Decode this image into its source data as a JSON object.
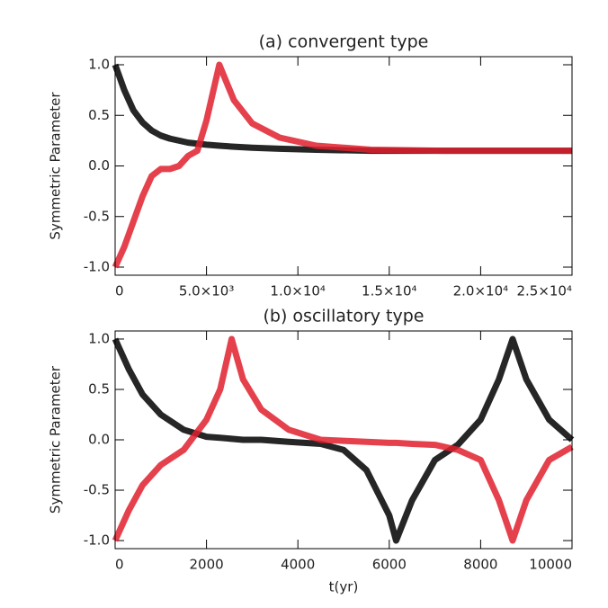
{
  "chart_data": [
    {
      "type": "line",
      "title": "(a) convergent type",
      "y_label": "Symmetric Parameter",
      "x": [
        0,
        500,
        1000,
        1500,
        2000,
        2500,
        3000,
        3500,
        4000,
        4500,
        5000,
        5700,
        6500,
        7500,
        9000,
        11000,
        14000,
        18000,
        25000
      ],
      "series": [
        {
          "color": "#000000",
          "values": [
            1.0,
            0.75,
            0.55,
            0.43,
            0.35,
            0.3,
            0.27,
            0.25,
            0.23,
            0.22,
            0.21,
            0.2,
            0.19,
            0.18,
            0.17,
            0.16,
            0.15,
            0.15,
            0.15
          ]
        },
        {
          "color": "#e0202e",
          "values": [
            -1.0,
            -0.8,
            -0.55,
            -0.3,
            -0.1,
            -0.03,
            -0.03,
            0.0,
            0.1,
            0.15,
            0.45,
            1.0,
            0.65,
            0.42,
            0.28,
            0.2,
            0.16,
            0.15,
            0.15
          ]
        }
      ],
      "xlim": [
        0,
        25000
      ],
      "ylim": [
        -1.08,
        1.08
      ],
      "xticks": [
        0,
        {
          "value": 5000,
          "label": "5.0×10³"
        },
        {
          "value": 10000,
          "label": "1.0×10⁴"
        },
        {
          "value": 15000,
          "label": "1.5×10⁴"
        },
        {
          "value": 20000,
          "label": "2.0×10⁴"
        },
        {
          "value": 25000,
          "label": "2.5×10⁴"
        }
      ],
      "yticks": [
        {
          "value": -1,
          "label": "-1.0"
        },
        {
          "value": -0.5,
          "label": "-0.5"
        },
        {
          "value": 0,
          "label": "0.0"
        },
        {
          "value": 0.5,
          "label": "0.5"
        },
        {
          "value": 1,
          "label": "1.0"
        }
      ]
    },
    {
      "type": "line",
      "title": "(b) oscillatory type",
      "y_label": "Symmetric Parameter",
      "x_label": "t(yr)",
      "x": [
        0,
        300,
        600,
        1000,
        1500,
        2000,
        2300,
        2550,
        2800,
        3200,
        3800,
        4500,
        5000,
        5500,
        6000,
        6150,
        6500,
        7000,
        7500,
        8000,
        8400,
        8700,
        9000,
        9500,
        10000
      ],
      "series": [
        {
          "color": "#000000",
          "values": [
            1.0,
            0.7,
            0.45,
            0.25,
            0.1,
            0.03,
            0.02,
            0.01,
            0.0,
            0.0,
            -0.02,
            -0.04,
            -0.1,
            -0.3,
            -0.75,
            -1.0,
            -0.6,
            -0.2,
            -0.05,
            0.2,
            0.6,
            1.0,
            0.6,
            0.2,
            0.0
          ]
        },
        {
          "color": "#e0202e",
          "values": [
            -1.0,
            -0.7,
            -0.45,
            -0.25,
            -0.1,
            0.2,
            0.5,
            1.0,
            0.6,
            0.3,
            0.1,
            0.0,
            -0.01,
            -0.02,
            -0.03,
            -0.03,
            -0.04,
            -0.05,
            -0.1,
            -0.2,
            -0.6,
            -1.0,
            -0.6,
            -0.2,
            -0.07
          ]
        }
      ],
      "xlim": [
        0,
        10000
      ],
      "ylim": [
        -1.08,
        1.08
      ],
      "xticks": [
        0,
        2000,
        4000,
        6000,
        8000,
        10000
      ],
      "yticks": [
        {
          "value": -1,
          "label": "-1.0"
        },
        {
          "value": -0.5,
          "label": "-0.5"
        },
        {
          "value": 0,
          "label": "0.0"
        },
        {
          "value": 0.5,
          "label": "0.5"
        },
        {
          "value": 1,
          "label": "1.0"
        }
      ]
    }
  ]
}
